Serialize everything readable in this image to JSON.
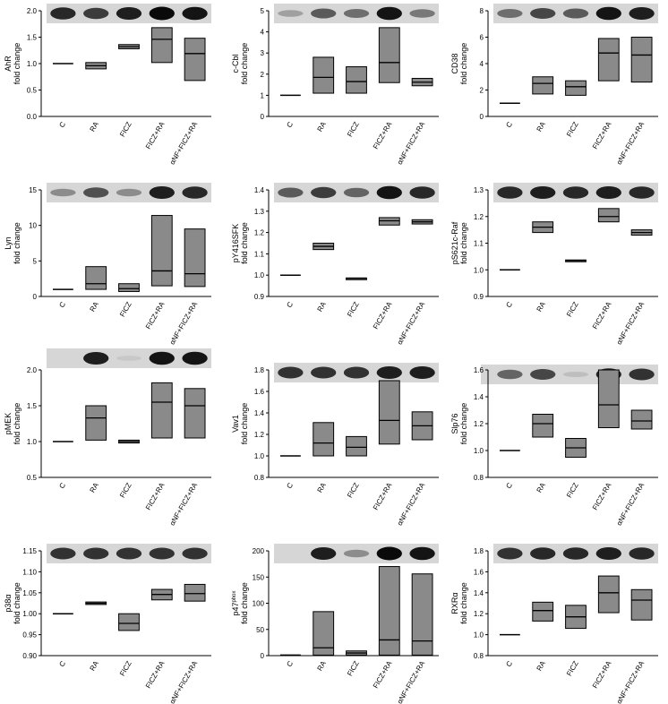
{
  "chart_data": [
    {
      "type": "bar",
      "ylabel": "AhR",
      "ylabel2": "fold change",
      "ylim": [
        0,
        2.0
      ],
      "yticks": [
        "0.0",
        "0.5",
        "1.0",
        "1.5",
        "2.0"
      ],
      "categories": [
        "C",
        "RA",
        "FICZ",
        "FICZ+RA",
        "αNF+FICZ+RA"
      ],
      "boxes": [
        {
          "median": 1.0
        },
        {
          "low": 0.9,
          "high": 1.02,
          "median": 0.96
        },
        {
          "low": 1.28,
          "high": 1.36,
          "median": 1.32
        },
        {
          "low": 1.02,
          "high": 1.68,
          "median": 1.46
        },
        {
          "low": 0.68,
          "high": 1.48,
          "median": 1.19
        }
      ],
      "blot_intensity": [
        0.85,
        0.75,
        0.9,
        1.0,
        0.95
      ]
    },
    {
      "type": "bar",
      "ylabel": "c-Cbl",
      "ylabel2": "fold change",
      "ylim": [
        0,
        5
      ],
      "yticks": [
        "0",
        "1",
        "2",
        "3",
        "4",
        "5"
      ],
      "categories": [
        "C",
        "RA",
        "FICZ",
        "FICZ+RA",
        "αNF+FICZ+RA"
      ],
      "boxes": [
        {
          "median": 1.0
        },
        {
          "low": 1.1,
          "high": 2.8,
          "median": 1.85
        },
        {
          "low": 1.1,
          "high": 2.35,
          "median": 1.65
        },
        {
          "low": 1.6,
          "high": 4.2,
          "median": 2.55
        },
        {
          "low": 1.45,
          "high": 1.8,
          "median": 1.62
        }
      ],
      "blot_intensity": [
        0.25,
        0.6,
        0.5,
        0.95,
        0.45
      ]
    },
    {
      "type": "bar",
      "ylabel": "CD38",
      "ylabel2": "fold change",
      "ylim": [
        0,
        8
      ],
      "yticks": [
        "0",
        "2",
        "4",
        "6",
        "8"
      ],
      "categories": [
        "C",
        "RA",
        "FICZ",
        "FICZ+RA",
        "αNF+FICZ+RA"
      ],
      "boxes": [
        {
          "median": 1.0
        },
        {
          "low": 1.7,
          "high": 3.0,
          "median": 2.5
        },
        {
          "low": 1.6,
          "high": 2.7,
          "median": 2.25
        },
        {
          "low": 2.7,
          "high": 5.9,
          "median": 4.8
        },
        {
          "low": 2.6,
          "high": 6.0,
          "median": 4.65
        }
      ],
      "blot_intensity": [
        0.5,
        0.7,
        0.6,
        0.95,
        0.9
      ]
    },
    {
      "type": "bar",
      "ylabel": "Lyn",
      "ylabel2": "fold change",
      "ylim": [
        0,
        15
      ],
      "yticks": [
        "0",
        "5",
        "10",
        "15"
      ],
      "categories": [
        "C",
        "RA",
        "FICZ",
        "FICZ+RA",
        "αNF+FICZ+RA"
      ],
      "boxes": [
        {
          "median": 1.0
        },
        {
          "low": 1.0,
          "high": 4.2,
          "median": 1.8
        },
        {
          "low": 0.7,
          "high": 1.8,
          "median": 1.1
        },
        {
          "low": 1.5,
          "high": 11.4,
          "median": 3.6
        },
        {
          "low": 1.4,
          "high": 9.5,
          "median": 3.2
        }
      ],
      "blot_intensity": [
        0.35,
        0.65,
        0.35,
        0.9,
        0.85
      ]
    },
    {
      "type": "bar",
      "ylabel": "pY416SFK",
      "ylabel2": "fold change",
      "ylim": [
        0.9,
        1.4
      ],
      "yticks": [
        "0.9",
        "1.0",
        "1.1",
        "1.2",
        "1.3",
        "1.4"
      ],
      "categories": [
        "C",
        "RA",
        "FICZ",
        "FICZ+RA",
        "αNF+FICZ+RA"
      ],
      "boxes": [
        {
          "median": 1.0
        },
        {
          "low": 1.12,
          "high": 1.15,
          "median": 1.135
        },
        {
          "low": 0.983,
          "high": 0.987,
          "median": 0.985
        },
        {
          "low": 1.235,
          "high": 1.27,
          "median": 1.255
        },
        {
          "low": 1.24,
          "high": 1.26,
          "median": 1.25
        }
      ],
      "blot_intensity": [
        0.6,
        0.75,
        0.55,
        0.95,
        0.85
      ]
    },
    {
      "type": "bar",
      "ylabel": "pS621c-Raf",
      "ylabel2": "fold change",
      "ylim": [
        0.9,
        1.3
      ],
      "yticks": [
        "0.9",
        "1.0",
        "1.1",
        "1.2",
        "1.3"
      ],
      "categories": [
        "C",
        "RA",
        "FICZ",
        "FICZ+RA",
        "αNF+FICZ+RA"
      ],
      "boxes": [
        {
          "median": 1.0
        },
        {
          "low": 1.14,
          "high": 1.18,
          "median": 1.16
        },
        {
          "low": 1.033,
          "high": 1.037,
          "median": 1.035
        },
        {
          "low": 1.18,
          "high": 1.23,
          "median": 1.2
        },
        {
          "low": 1.13,
          "high": 1.15,
          "median": 1.14
        }
      ],
      "blot_intensity": [
        0.85,
        0.9,
        0.85,
        0.9,
        0.85
      ]
    },
    {
      "type": "bar",
      "ylabel": "pMEK",
      "ylabel2": "fold change",
      "ylim": [
        0.5,
        2.0
      ],
      "yticks": [
        "0.5",
        "1.0",
        "1.5",
        "2.0"
      ],
      "categories": [
        "C",
        "RA",
        "FICZ",
        "FICZ+RA",
        "αNF+FICZ+RA"
      ],
      "boxes": [
        {
          "median": 1.0
        },
        {
          "low": 1.02,
          "high": 1.5,
          "median": 1.33
        },
        {
          "low": 0.98,
          "high": 1.02,
          "median": 1.0
        },
        {
          "low": 1.05,
          "high": 1.82,
          "median": 1.55
        },
        {
          "low": 1.05,
          "high": 1.74,
          "median": 1.5
        }
      ],
      "blot_intensity": [
        0.0,
        0.9,
        0.05,
        0.95,
        0.95
      ]
    },
    {
      "type": "bar",
      "ylabel": "Vav1",
      "ylabel2": "fold change",
      "ylim": [
        0.8,
        1.8
      ],
      "yticks": [
        "0.8",
        "1.0",
        "1.2",
        "1.4",
        "1.6",
        "1.8"
      ],
      "categories": [
        "C",
        "RA",
        "FICZ",
        "FICZ+RA",
        "αNF+FICZ+RA"
      ],
      "boxes": [
        {
          "median": 1.0
        },
        {
          "low": 1.0,
          "high": 1.31,
          "median": 1.12
        },
        {
          "low": 1.0,
          "high": 1.18,
          "median": 1.08
        },
        {
          "low": 1.11,
          "high": 1.7,
          "median": 1.33
        },
        {
          "low": 1.15,
          "high": 1.41,
          "median": 1.28
        }
      ],
      "blot_intensity": [
        0.8,
        0.8,
        0.8,
        0.9,
        0.9
      ]
    },
    {
      "type": "bar",
      "ylabel": "Slp76",
      "ylabel2": "fold change",
      "ylim": [
        0.8,
        1.6
      ],
      "yticks": [
        "0.8",
        "1.0",
        "1.2",
        "1.4",
        "1.6"
      ],
      "categories": [
        "C",
        "RA",
        "FICZ",
        "FICZ+RA",
        "αNF+FICZ+RA"
      ],
      "boxes": [
        {
          "median": 1.0
        },
        {
          "low": 1.1,
          "high": 1.27,
          "median": 1.2
        },
        {
          "low": 0.95,
          "high": 1.09,
          "median": 1.02
        },
        {
          "low": 1.17,
          "high": 1.6,
          "median": 1.34
        },
        {
          "low": 1.16,
          "high": 1.3,
          "median": 1.22
        }
      ],
      "blot_intensity": [
        0.55,
        0.7,
        0.1,
        0.85,
        0.8
      ]
    },
    {
      "type": "bar",
      "ylabel": "p38α",
      "ylabel2": "fold change",
      "ylim": [
        0.9,
        1.15
      ],
      "yticks": [
        "0.90",
        "0.95",
        "1.00",
        "1.05",
        "1.10",
        "1.15"
      ],
      "categories": [
        "C",
        "RA",
        "FICZ",
        "FICZ+RA",
        "αNF+FICZ+RA"
      ],
      "boxes": [
        {
          "median": 1.0
        },
        {
          "low": 1.022,
          "high": 1.028,
          "median": 1.025
        },
        {
          "low": 0.96,
          "high": 1.0,
          "median": 0.977
        },
        {
          "low": 1.033,
          "high": 1.058,
          "median": 1.046
        },
        {
          "low": 1.03,
          "high": 1.07,
          "median": 1.048
        }
      ],
      "blot_intensity": [
        0.8,
        0.8,
        0.8,
        0.8,
        0.8
      ]
    },
    {
      "type": "bar",
      "ylabel": "p47",
      "ylabel_sup": "phox",
      "ylabel2": "fold change",
      "ylim": [
        0,
        200
      ],
      "yticks": [
        "0",
        "50",
        "100",
        "150",
        "200"
      ],
      "categories": [
        "C",
        "RA",
        "FICZ",
        "FICZ+RA",
        "αNF+FICZ+RA"
      ],
      "boxes": [
        {
          "median": 1.0
        },
        {
          "low": 1,
          "high": 84,
          "median": 15
        },
        {
          "low": 1,
          "high": 9,
          "median": 5
        },
        {
          "low": 1,
          "high": 170,
          "median": 30
        },
        {
          "low": 1,
          "high": 156,
          "median": 28
        }
      ],
      "blot_intensity": [
        0.0,
        0.9,
        0.35,
        1.0,
        0.95
      ]
    },
    {
      "type": "bar",
      "ylabel": "RXRα",
      "ylabel2": "fold change",
      "ylim": [
        0.8,
        1.8
      ],
      "yticks": [
        "0.8",
        "1.0",
        "1.2",
        "1.4",
        "1.6",
        "1.8"
      ],
      "categories": [
        "C",
        "RA",
        "FICZ",
        "FICZ+RA",
        "αNF+FICZ+RA"
      ],
      "boxes": [
        {
          "median": 1.0
        },
        {
          "low": 1.13,
          "high": 1.31,
          "median": 1.23
        },
        {
          "low": 1.06,
          "high": 1.28,
          "median": 1.17
        },
        {
          "low": 1.21,
          "high": 1.56,
          "median": 1.4
        },
        {
          "low": 1.14,
          "high": 1.43,
          "median": 1.33
        }
      ],
      "blot_intensity": [
        0.8,
        0.85,
        0.85,
        0.9,
        0.85
      ]
    }
  ]
}
